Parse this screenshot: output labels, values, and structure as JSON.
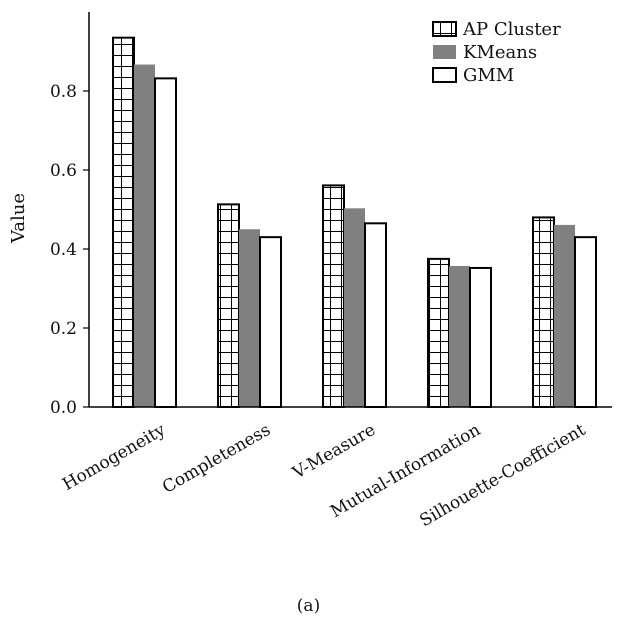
{
  "chart_data": {
    "type": "bar",
    "categories": [
      "Homogeneity",
      "Completeness",
      "V-Measure",
      "Mutual-Information",
      "Silhouette-Coefficient"
    ],
    "series": [
      {
        "name": "AP Cluster",
        "values": [
          0.935,
          0.513,
          0.561,
          0.375,
          0.48
        ],
        "fill": "hatched-grid"
      },
      {
        "name": "KMeans",
        "values": [
          0.867,
          0.45,
          0.503,
          0.357,
          0.461
        ],
        "fill": "#808080"
      },
      {
        "name": "GMM",
        "values": [
          0.832,
          0.43,
          0.465,
          0.352,
          0.43
        ],
        "fill": "#ffffff"
      }
    ],
    "ylabel": "Value",
    "xlabel": "",
    "ylim": [
      0,
      1.0
    ],
    "yticks": [
      "0.0",
      "0.2",
      "0.4",
      "0.6",
      "0.8"
    ],
    "ytick_values": [
      0.0,
      0.2,
      0.4,
      0.6,
      0.8
    ],
    "legend_position": "top-right",
    "grid": false
  },
  "caption": "(a)"
}
